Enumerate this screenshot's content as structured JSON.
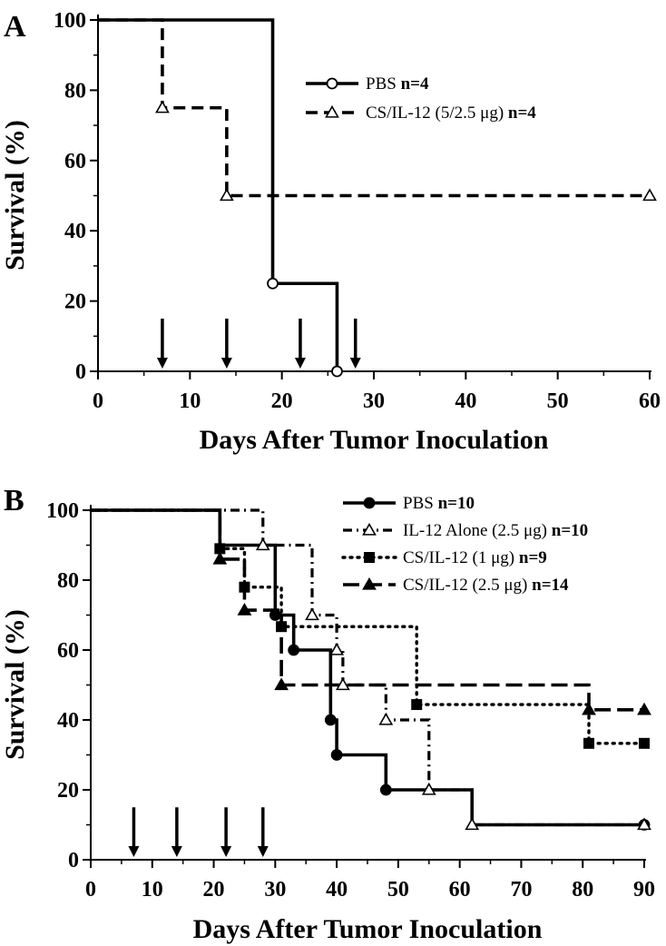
{
  "chart_data": [
    {
      "type": "line",
      "step": true,
      "panel": "A",
      "xlabel": "Days After Tumor Inoculation",
      "ylabel": "Survival (%)",
      "xlim": [
        0,
        60
      ],
      "ylim": [
        0,
        100
      ],
      "xticks": [
        0,
        10,
        20,
        30,
        40,
        50,
        60
      ],
      "yticks": [
        0,
        20,
        40,
        60,
        80,
        100
      ],
      "xtick_labels": [
        "0",
        "10",
        "20",
        "30",
        "40",
        "50",
        "60"
      ],
      "ytick_labels": [
        "0",
        "20",
        "40",
        "60",
        "80",
        "100"
      ],
      "treatment_days": [
        7,
        14,
        22,
        28
      ],
      "legend_position": "top-right",
      "series": [
        {
          "name": "PBS",
          "n": "n=4",
          "style": "solid",
          "marker": "open-circle",
          "steps": [
            [
              0,
              100
            ],
            [
              19,
              25
            ],
            [
              26,
              0
            ]
          ],
          "markers": [
            [
              19,
              25
            ],
            [
              26,
              0
            ]
          ]
        },
        {
          "name": "CS/IL-12 (5/2.5 μg)",
          "n": "n=4",
          "style": "dashed",
          "marker": "open-triangle",
          "steps": [
            [
              0,
              100
            ],
            [
              7,
              75
            ],
            [
              14,
              50
            ],
            [
              60,
              50
            ]
          ],
          "markers": [
            [
              7,
              75
            ],
            [
              14,
              50
            ],
            [
              60,
              50
            ]
          ]
        }
      ]
    },
    {
      "type": "line",
      "step": true,
      "panel": "B",
      "xlabel": "Days After Tumor Inoculation",
      "ylabel": "Survival (%)",
      "xlim": [
        0,
        90
      ],
      "ylim": [
        0,
        100
      ],
      "xticks": [
        0,
        10,
        20,
        30,
        40,
        50,
        60,
        70,
        80,
        90
      ],
      "yticks": [
        0,
        20,
        40,
        60,
        80,
        100
      ],
      "xtick_labels": [
        "0",
        "10",
        "20",
        "30",
        "40",
        "50",
        "60",
        "70",
        "80",
        "90"
      ],
      "ytick_labels": [
        "0",
        "20",
        "40",
        "60",
        "80",
        "100"
      ],
      "treatment_days": [
        7,
        14,
        22,
        28
      ],
      "legend_position": "top-right",
      "series": [
        {
          "name": "PBS",
          "n": "n=10",
          "style": "solid",
          "marker": "filled-circle",
          "steps": [
            [
              0,
              100
            ],
            [
              21,
              90
            ],
            [
              30,
              70
            ],
            [
              33,
              60
            ],
            [
              39,
              40
            ],
            [
              40,
              30
            ],
            [
              48,
              20
            ],
            [
              62,
              10
            ],
            [
              90,
              10
            ]
          ],
          "markers": [
            [
              30,
              70
            ],
            [
              33,
              60
            ],
            [
              39,
              40
            ],
            [
              40,
              30
            ],
            [
              48,
              20
            ],
            [
              90,
              10
            ]
          ]
        },
        {
          "name": "IL-12 Alone (2.5 μg)",
          "n": "n=10",
          "style": "dashdot",
          "marker": "open-triangle",
          "steps": [
            [
              0,
              100
            ],
            [
              28,
              90
            ],
            [
              36,
              70
            ],
            [
              40,
              60
            ],
            [
              41,
              50
            ],
            [
              48,
              40
            ],
            [
              55,
              20
            ],
            [
              62,
              10
            ],
            [
              90,
              10
            ]
          ],
          "markers": [
            [
              28,
              90
            ],
            [
              36,
              70
            ],
            [
              40,
              60
            ],
            [
              41,
              50
            ],
            [
              48,
              40
            ],
            [
              55,
              20
            ],
            [
              62,
              10
            ],
            [
              90,
              10
            ]
          ]
        },
        {
          "name": "CS/IL-12 (1 μg)",
          "n": "n=9",
          "style": "dotted",
          "marker": "filled-square",
          "steps": [
            [
              0,
              100
            ],
            [
              21,
              89
            ],
            [
              25,
              78
            ],
            [
              31,
              66.7
            ],
            [
              53,
              44.4
            ],
            [
              81,
              33.3
            ],
            [
              90,
              33.3
            ]
          ],
          "markers": [
            [
              21,
              89
            ],
            [
              25,
              78
            ],
            [
              31,
              66.7
            ],
            [
              53,
              44.4
            ],
            [
              81,
              33.3
            ],
            [
              90,
              33.3
            ]
          ]
        },
        {
          "name": "CS/IL-12 (2.5 μg)",
          "n": "n=14",
          "style": "longdash",
          "marker": "filled-triangle",
          "steps": [
            [
              0,
              100
            ],
            [
              21,
              86
            ],
            [
              25,
              71.4
            ],
            [
              31,
              50
            ],
            [
              81,
              42.9
            ],
            [
              90,
              42.9
            ]
          ],
          "markers": [
            [
              21,
              86
            ],
            [
              25,
              71.4
            ],
            [
              31,
              50
            ],
            [
              81,
              42.9
            ],
            [
              90,
              42.9
            ]
          ]
        }
      ]
    }
  ]
}
